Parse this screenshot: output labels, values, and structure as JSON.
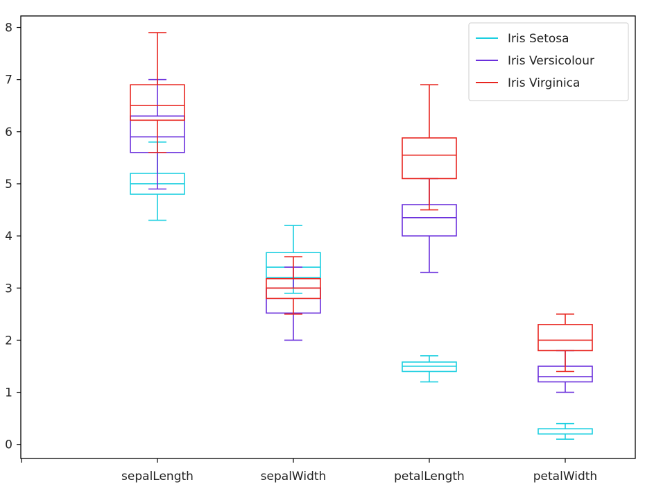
{
  "chart_data": {
    "type": "box",
    "categories": [
      "sepalLength",
      "sepalWidth",
      "petalLength",
      "petalWidth"
    ],
    "yticks": [
      "0",
      "1",
      "2",
      "3",
      "4",
      "5",
      "6",
      "7",
      "8"
    ],
    "ylim": [
      -0.27,
      8.22
    ],
    "legend_position": "top-right",
    "grid": false,
    "series": [
      {
        "name": "Iris Setosa",
        "color": "#1bcfe0",
        "boxes": [
          {
            "min": 4.3,
            "q1": 4.8,
            "median": 5.0,
            "q3": 5.2,
            "max": 5.8
          },
          {
            "min": 2.9,
            "q1": 3.2,
            "median": 3.4,
            "q3": 3.68,
            "max": 4.2
          },
          {
            "min": 1.2,
            "q1": 1.4,
            "median": 1.5,
            "q3": 1.58,
            "max": 1.7
          },
          {
            "min": 0.1,
            "q1": 0.2,
            "median": 0.2,
            "q3": 0.3,
            "max": 0.4
          }
        ]
      },
      {
        "name": "Iris Versicolour",
        "color": "#6a2fdc",
        "boxes": [
          {
            "min": 4.9,
            "q1": 5.6,
            "median": 5.9,
            "q3": 6.3,
            "max": 7.0
          },
          {
            "min": 2.0,
            "q1": 2.52,
            "median": 2.8,
            "q3": 3.0,
            "max": 3.4
          },
          {
            "min": 3.3,
            "q1": 4.0,
            "median": 4.35,
            "q3": 4.6,
            "max": 5.1
          },
          {
            "min": 1.0,
            "q1": 1.2,
            "median": 1.3,
            "q3": 1.5,
            "max": 1.8
          }
        ]
      },
      {
        "name": "Iris Virginica",
        "color": "#e8251f",
        "boxes": [
          {
            "min": 5.6,
            "q1": 6.22,
            "median": 6.5,
            "q3": 6.9,
            "max": 7.9
          },
          {
            "min": 2.5,
            "q1": 2.8,
            "median": 3.0,
            "q3": 3.18,
            "max": 3.6
          },
          {
            "min": 4.5,
            "q1": 5.1,
            "median": 5.55,
            "q3": 5.88,
            "max": 6.9
          },
          {
            "min": 1.4,
            "q1": 1.8,
            "median": 2.0,
            "q3": 2.3,
            "max": 2.5
          }
        ]
      }
    ]
  }
}
